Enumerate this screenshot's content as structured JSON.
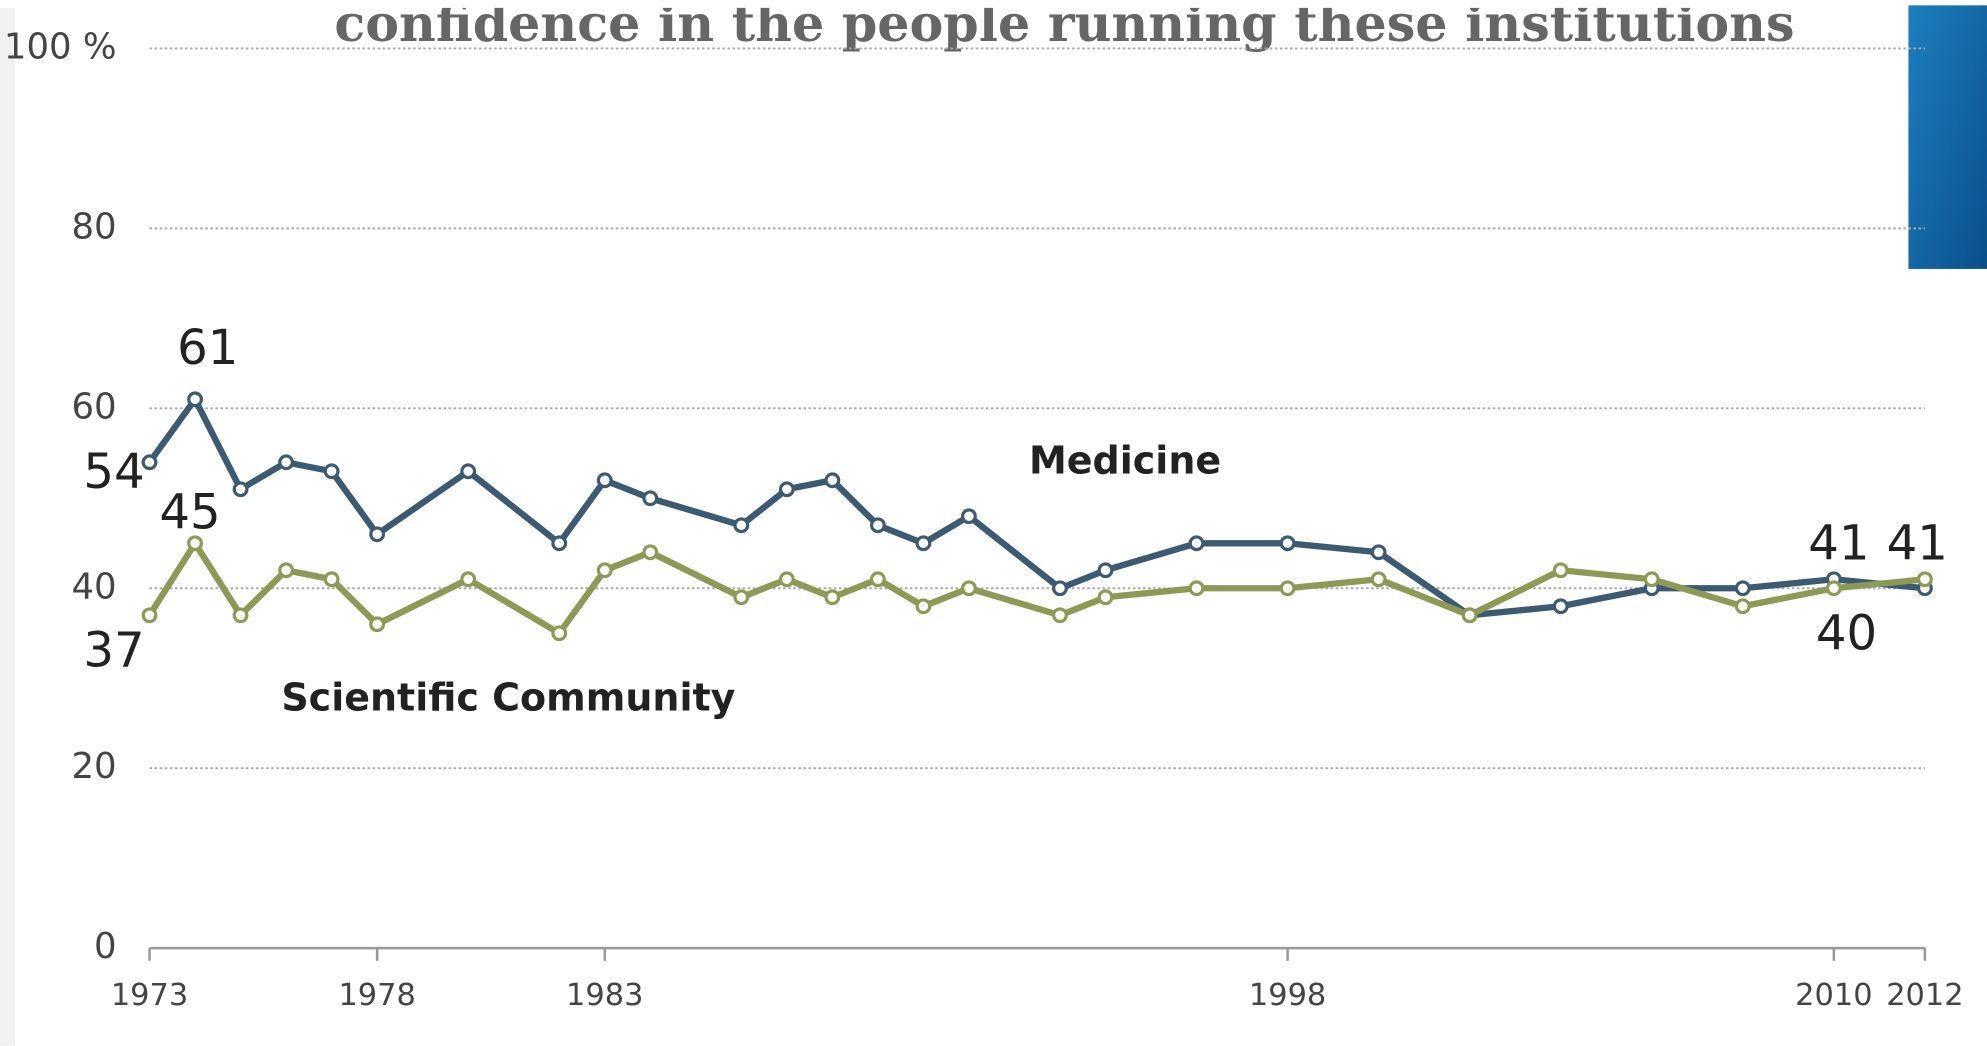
{
  "chart_data": {
    "type": "line",
    "title": "confidence in the people running these institutions",
    "x": [
      1973,
      1974,
      1975,
      1976,
      1977,
      1978,
      1980,
      1982,
      1983,
      1984,
      1986,
      1987,
      1988,
      1989,
      1990,
      1991,
      1993,
      1994,
      1996,
      1998,
      2000,
      2002,
      2004,
      2006,
      2008,
      2010,
      2012
    ],
    "series": [
      {
        "name": "Medicine",
        "color": "#3d5a73",
        "values": [
          54,
          61,
          51,
          54,
          53,
          46,
          53,
          45,
          52,
          50,
          47,
          51,
          52,
          47,
          45,
          48,
          40,
          42,
          45,
          45,
          44,
          37,
          38,
          40,
          40,
          41,
          40
        ]
      },
      {
        "name": "Scientific Community",
        "color": "#8c9a55",
        "values": [
          37,
          45,
          37,
          42,
          41,
          36,
          41,
          35,
          42,
          44,
          39,
          41,
          39,
          41,
          38,
          40,
          37,
          39,
          40,
          40,
          41,
          37,
          42,
          41,
          38,
          40,
          41
        ]
      }
    ],
    "xlim": [
      1973,
      2012
    ],
    "xticks": [
      1973,
      1978,
      1983,
      1998,
      2010,
      2012
    ],
    "ylim": [
      0,
      100
    ],
    "yticks": [
      0,
      20,
      40,
      60,
      80,
      {
        "value": 100,
        "label": "100 %"
      }
    ],
    "grid": true
  }
}
